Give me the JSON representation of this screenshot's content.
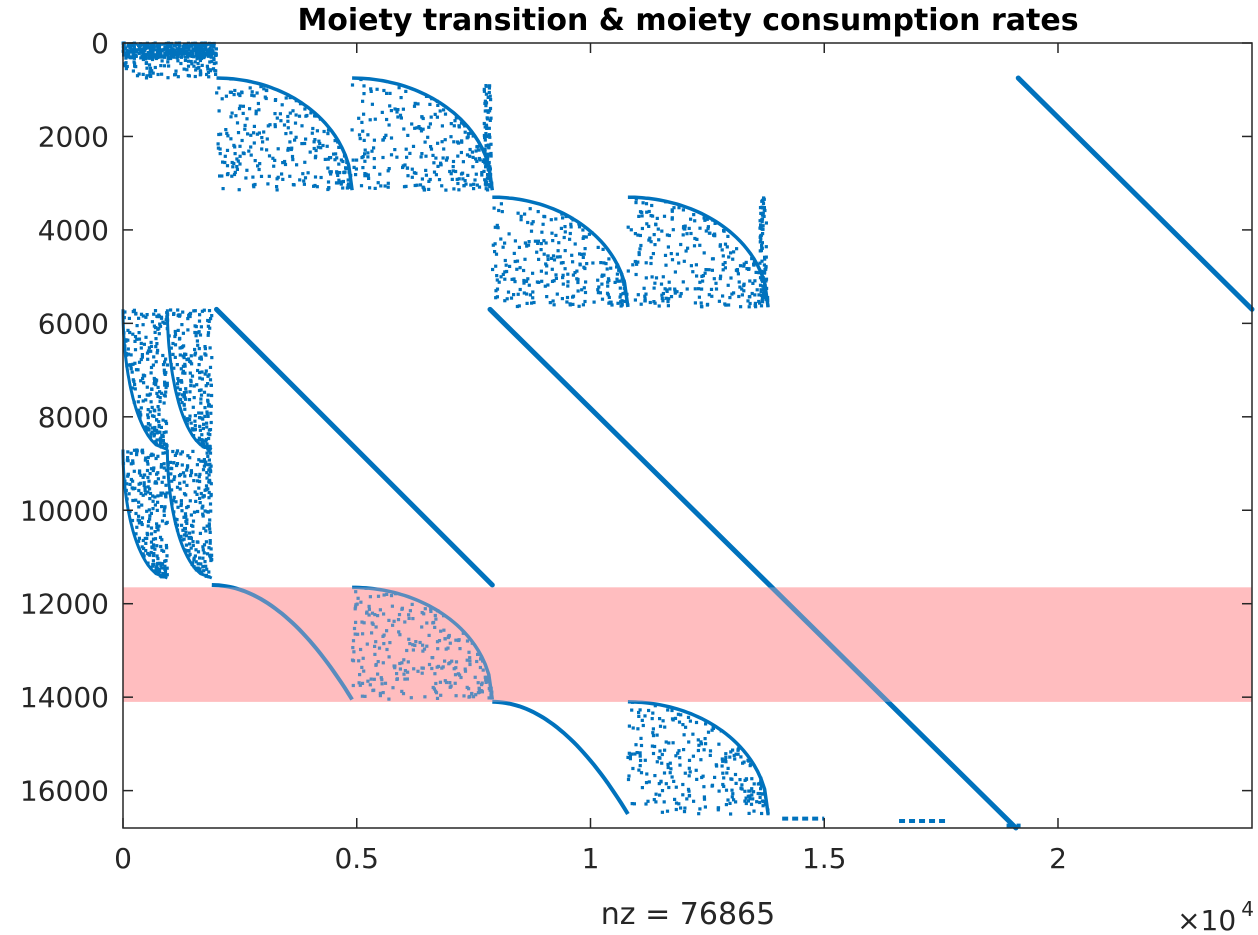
{
  "chart_data": {
    "type": "scatter",
    "title": "Moiety transition & moiety consumption rates",
    "xlabel": "nz = 76865",
    "ylabel": "",
    "xlim": [
      0,
      24150
    ],
    "ylim": [
      0,
      16800
    ],
    "y_reversed": true,
    "x_exponent": {
      "base": "×10",
      "power": "4"
    },
    "x_ticks": [
      {
        "value": 0,
        "label": "0"
      },
      {
        "value": 5000,
        "label": "0.5"
      },
      {
        "value": 10000,
        "label": "1"
      },
      {
        "value": 15000,
        "label": "1.5"
      },
      {
        "value": 20000,
        "label": "2"
      }
    ],
    "y_ticks": [
      {
        "value": 0,
        "label": "0"
      },
      {
        "value": 2000,
        "label": "2000"
      },
      {
        "value": 4000,
        "label": "4000"
      },
      {
        "value": 6000,
        "label": "6000"
      },
      {
        "value": 8000,
        "label": "8000"
      },
      {
        "value": 10000,
        "label": "10000"
      },
      {
        "value": 12000,
        "label": "12000"
      },
      {
        "value": 14000,
        "label": "14000"
      },
      {
        "value": 16000,
        "label": "16000"
      }
    ],
    "grid": false,
    "marker_color": "#0072BD",
    "highlight_color": "#FFBDBF",
    "highlight_band": {
      "y_from": 11650,
      "y_to": 14100
    },
    "diagonals": [
      {
        "x0": 19150,
        "y0": 750,
        "x1": 24150,
        "y1": 5700
      },
      {
        "x0": 2000,
        "y0": 5700,
        "x1": 7900,
        "y1": 11600
      },
      {
        "x0": 7850,
        "y0": 5700,
        "x1": 19100,
        "y1": 16800
      }
    ],
    "fan_blocks": [
      {
        "x0": 2000,
        "x1": 4900,
        "y0": 750,
        "y1": 3150
      },
      {
        "x0": 4900,
        "x1": 7900,
        "y0": 750,
        "y1": 3150
      },
      {
        "x0": 7900,
        "x1": 10800,
        "y0": 3300,
        "y1": 5650
      },
      {
        "x0": 10800,
        "x1": 13800,
        "y0": 3300,
        "y1": 5650
      },
      {
        "x0": 4900,
        "x1": 7900,
        "y0": 11650,
        "y1": 14050
      },
      {
        "x0": 10800,
        "x1": 13800,
        "y0": 14100,
        "y1": 16500
      }
    ],
    "column_blocks": [
      {
        "x0": 0,
        "x1": 950,
        "y0": 5700,
        "y1": 8700
      },
      {
        "x0": 950,
        "x1": 1900,
        "y0": 5700,
        "y1": 8700
      },
      {
        "x0": 0,
        "x1": 950,
        "y0": 8700,
        "y1": 11450
      },
      {
        "x0": 950,
        "x1": 1900,
        "y0": 8700,
        "y1": 11450
      }
    ],
    "vertical_strips": [
      {
        "x": 7800,
        "y0": 750,
        "y1": 3000
      },
      {
        "x": 13700,
        "y0": 3300,
        "y1": 5650
      }
    ],
    "curves": [
      {
        "x0": 1900,
        "y0": 11600,
        "x1": 4900,
        "y1": 14050
      },
      {
        "x0": 7900,
        "y0": 14100,
        "x1": 10800,
        "y1": 16500
      }
    ],
    "top_block": {
      "x0": 0,
      "x1": 2000,
      "y0": 0,
      "y1": 750
    },
    "bottom_dashes": [
      {
        "x0": 14100,
        "x1": 15000,
        "y": 16600
      },
      {
        "x0": 16600,
        "x1": 17600,
        "y": 16650
      },
      {
        "x0": 18900,
        "x1": 19200,
        "y": 16750
      }
    ]
  }
}
